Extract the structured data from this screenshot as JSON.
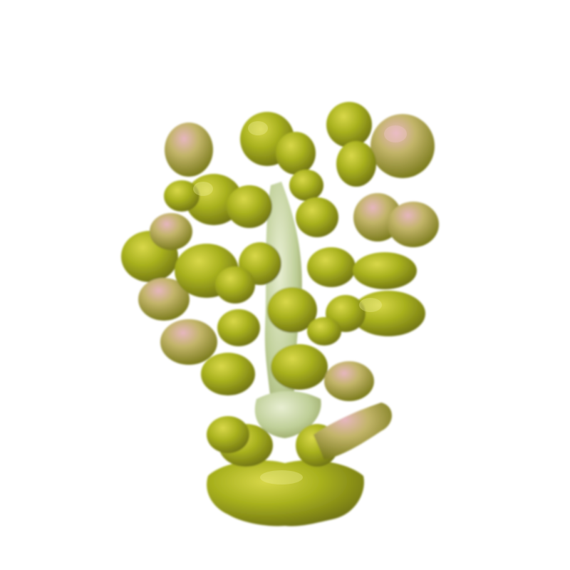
{
  "background": "#ffffff",
  "subject": "green-pink-3d-molecular-surface",
  "palette": {
    "olive": "#a8b21e",
    "olive_dark": "#6d7010",
    "olive_light": "#cfd23e",
    "pink": "#e0a8b4",
    "pale_green": "#cfdcae"
  }
}
